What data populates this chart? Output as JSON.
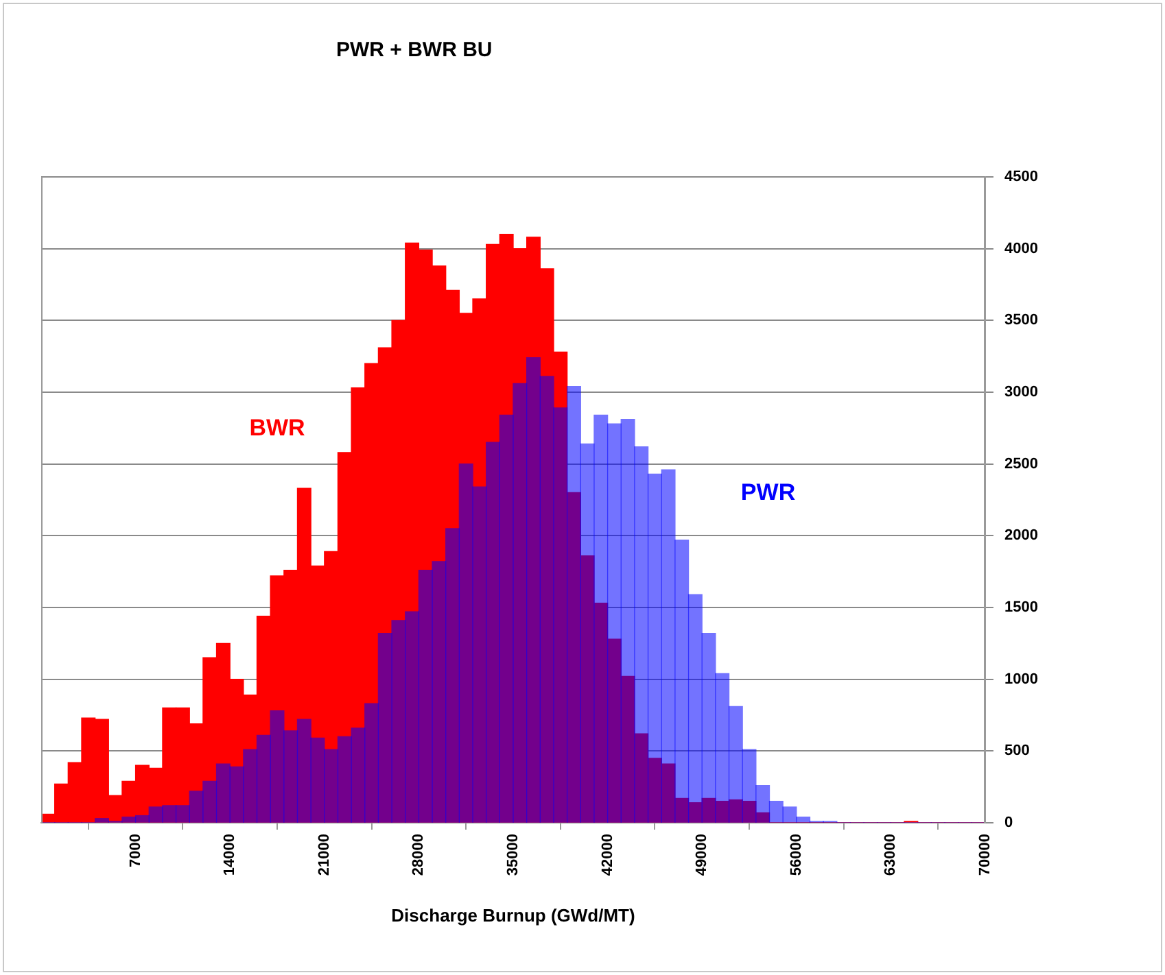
{
  "chart_data": {
    "type": "histogram",
    "title": "PWR + BWR BU",
    "xlabel": "Discharge Burnup (GWd/MT)",
    "bins": [
      0,
      1000,
      2000,
      3000,
      4000,
      5000,
      6000,
      7000,
      8000,
      9000,
      10000,
      11000,
      12000,
      13000,
      14000,
      15000,
      16000,
      17000,
      18000,
      19000,
      20000,
      21000,
      22000,
      23000,
      24000,
      25000,
      26000,
      27000,
      28000,
      29000,
      30000,
      31000,
      32000,
      33000,
      34000,
      35000,
      36000,
      37000,
      38000,
      39000,
      40000,
      41000,
      42000,
      43000,
      44000,
      45000,
      46000,
      47000,
      48000,
      49000,
      50000,
      51000,
      52000,
      53000,
      54000,
      55000,
      56000,
      57000,
      58000,
      59000,
      60000,
      61000,
      62000,
      63000,
      64000,
      65000,
      66000,
      67000,
      68000,
      69000,
      70000
    ],
    "series": [
      {
        "name": "BWR",
        "color": "#ff0000",
        "values": [
          60,
          270,
          420,
          730,
          720,
          190,
          290,
          400,
          380,
          800,
          800,
          690,
          1150,
          1250,
          1000,
          890,
          1440,
          1720,
          1760,
          2330,
          1790,
          1890,
          2580,
          3030,
          3200,
          3310,
          3500,
          4040,
          3990,
          3880,
          3710,
          3550,
          3650,
          4030,
          4100,
          4000,
          4080,
          3860,
          3280,
          2300,
          1860,
          1530,
          1280,
          1020,
          620,
          450,
          410,
          170,
          140,
          170,
          150,
          160,
          150,
          70,
          0,
          0,
          0,
          0,
          0,
          0,
          0,
          0,
          0,
          0,
          10,
          0,
          0,
          0,
          0,
          0
        ]
      },
      {
        "name": "PWR",
        "color": "#0000ff",
        "values": [
          0,
          0,
          0,
          0,
          30,
          10,
          40,
          50,
          110,
          120,
          120,
          220,
          290,
          410,
          390,
          510,
          610,
          780,
          640,
          720,
          590,
          510,
          600,
          660,
          830,
          1320,
          1410,
          1470,
          1760,
          1820,
          2050,
          2500,
          2340,
          2650,
          2840,
          3060,
          3240,
          3110,
          2890,
          3040,
          2640,
          2840,
          2780,
          2810,
          2620,
          2430,
          2460,
          1970,
          1590,
          1320,
          1040,
          810,
          510,
          260,
          150,
          110,
          40,
          10,
          10,
          0,
          0,
          0,
          0,
          0,
          0,
          0,
          0,
          0,
          0,
          0
        ]
      }
    ],
    "xlim": [
      0,
      70000
    ],
    "xticks": [
      7000,
      14000,
      21000,
      28000,
      35000,
      42000,
      49000,
      56000,
      63000,
      70000
    ],
    "ylim": [
      0,
      4500
    ],
    "yticks": [
      0,
      500,
      1000,
      1500,
      2000,
      2500,
      3000,
      3500,
      4000,
      4500
    ],
    "grid": "y",
    "legend": false
  }
}
